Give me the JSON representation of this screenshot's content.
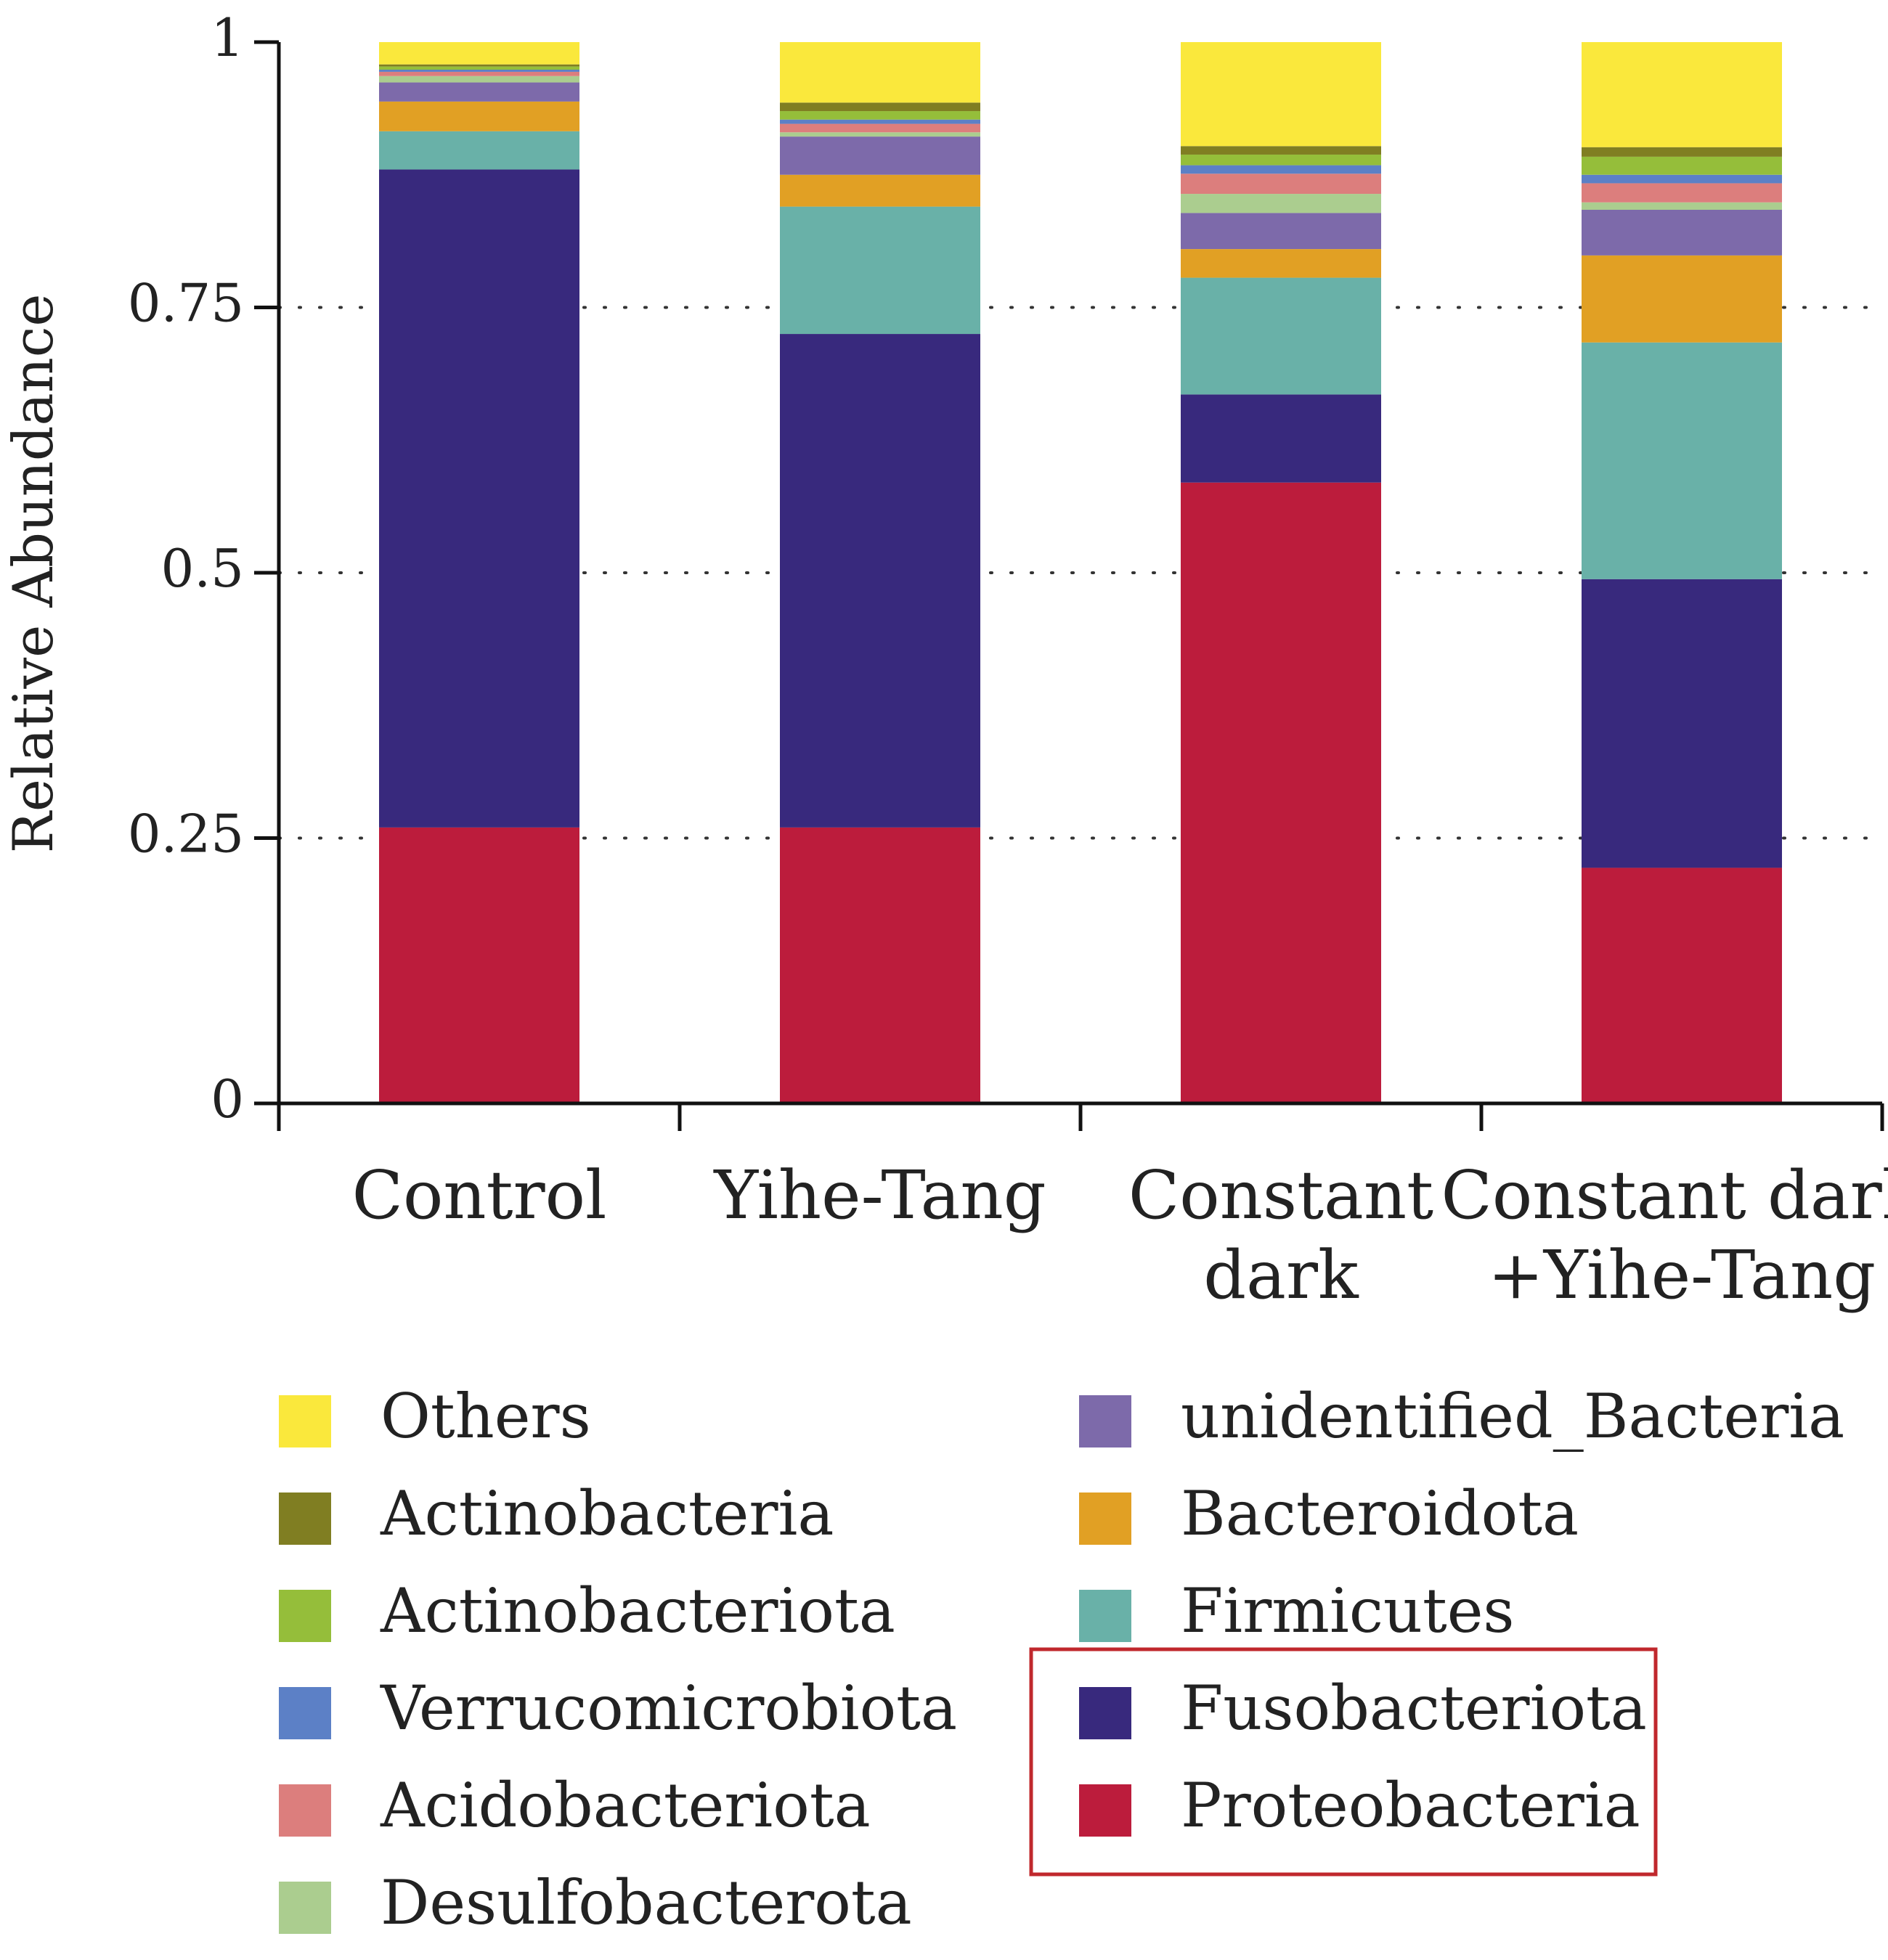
{
  "chart_data": {
    "type": "bar",
    "stacked": true,
    "title": "",
    "xlabel": "",
    "ylabel": "Relative Abundance",
    "ylim": [
      0,
      1
    ],
    "yticks": [
      {
        "value": 0,
        "label": "0"
      },
      {
        "value": 0.25,
        "label": "0.25"
      },
      {
        "value": 0.5,
        "label": "0.5"
      },
      {
        "value": 0.75,
        "label": "0.75"
      },
      {
        "value": 1,
        "label": "1"
      }
    ],
    "gridlines": "dotted at 0.25, 0.5, 0.75",
    "categories": [
      {
        "lines": [
          "Control"
        ]
      },
      {
        "lines": [
          "Yihe-Tang"
        ]
      },
      {
        "lines": [
          "Constant",
          "dark"
        ]
      },
      {
        "lines": [
          "Constant dark",
          "+Yihe-Tang"
        ]
      }
    ],
    "series": [
      {
        "name": "Proteobacteria",
        "color": "#bc1c3c",
        "values": [
          0.26,
          0.26,
          0.585,
          0.222
        ]
      },
      {
        "name": "Fusobacteriota",
        "color": "#38297d",
        "values": [
          0.62,
          0.465,
          0.083,
          0.272
        ]
      },
      {
        "name": "Firmicutes",
        "color": "#69b1a8",
        "values": [
          0.036,
          0.12,
          0.11,
          0.223
        ]
      },
      {
        "name": "Bacteroidota",
        "color": "#e1a024",
        "values": [
          0.028,
          0.03,
          0.027,
          0.082
        ]
      },
      {
        "name": "unidentified_Bacteria",
        "color": "#7d6aaa",
        "values": [
          0.018,
          0.036,
          0.034,
          0.043
        ]
      },
      {
        "name": "Desulfobacterota",
        "color": "#abcd8f",
        "values": [
          0.006,
          0.004,
          0.018,
          0.007
        ]
      },
      {
        "name": "Acidobacteriota",
        "color": "#dc7e7d",
        "values": [
          0.004,
          0.008,
          0.019,
          0.018
        ]
      },
      {
        "name": "Verrucomicrobiota",
        "color": "#5c80c6",
        "values": [
          0.002,
          0.004,
          0.008,
          0.008
        ]
      },
      {
        "name": "Actinobacteriota",
        "color": "#95be3a",
        "values": [
          0.003,
          0.008,
          0.01,
          0.017
        ]
      },
      {
        "name": "Actinobacteria",
        "color": "#807e22",
        "values": [
          0.002,
          0.008,
          0.008,
          0.009
        ]
      },
      {
        "name": "Others",
        "color": "#fae83c",
        "values": [
          0.021,
          0.057,
          0.098,
          0.099
        ]
      }
    ],
    "legend": {
      "placement": "bottom",
      "columns": [
        [
          "Others",
          "Actinobacteria",
          "Actinobacteriota",
          "Verrucomicrobiota",
          "Acidobacteriota",
          "Desulfobacterota"
        ],
        [
          "unidentified_Bacteria",
          "Bacteroidota",
          "Firmicutes",
          "Fusobacteriota",
          "Proteobacteria"
        ]
      ],
      "highlighted": [
        "Fusobacteriota",
        "Proteobacteria"
      ],
      "highlight_color": "#c0282d"
    }
  }
}
